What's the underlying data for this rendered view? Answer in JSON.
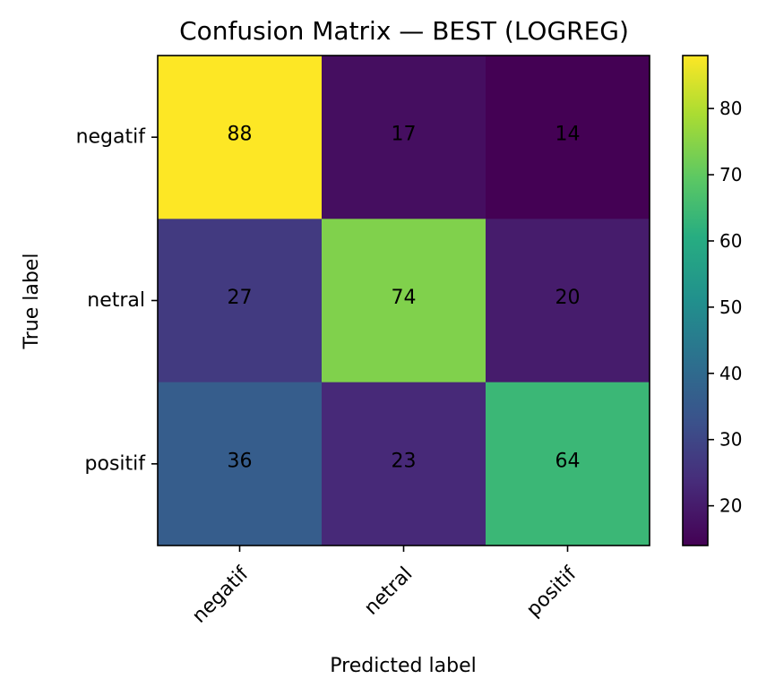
{
  "chart_data": {
    "type": "heatmap",
    "title": "Confusion Matrix — BEST (LOGREG)",
    "xlabel": "Predicted label",
    "ylabel": "True label",
    "x_categories": [
      "negatif",
      "netral",
      "positif"
    ],
    "y_categories": [
      "negatif",
      "netral",
      "positif"
    ],
    "values": [
      [
        88,
        17,
        14
      ],
      [
        27,
        74,
        20
      ],
      [
        36,
        23,
        64
      ]
    ],
    "colormap": "viridis",
    "colorbar": {
      "range": [
        14,
        88
      ],
      "ticks": [
        20,
        30,
        40,
        50,
        60,
        70,
        80
      ]
    },
    "grid": false
  }
}
